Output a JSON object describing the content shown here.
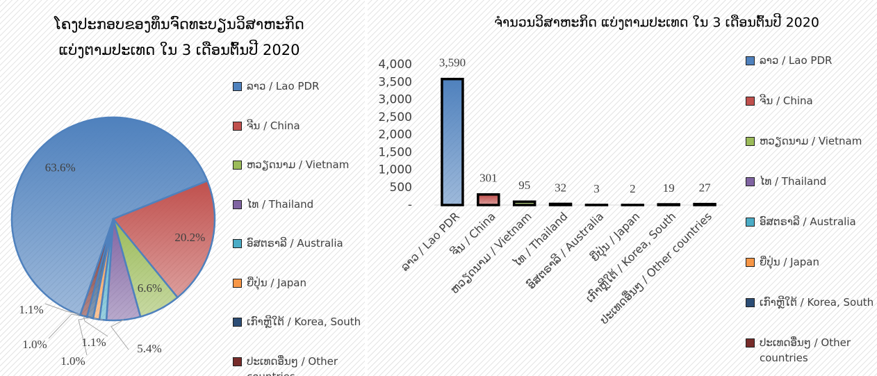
{
  "chart_data": [
    {
      "type": "pie",
      "title": [
        "ໂຄງປະກອບຂອງທຶນຈົດທະບຽນວິສາຫະກິດ",
        "ແບ່ງຕາມປະເທດ ໃນ 3 ເດືອນຕົ້ນປີ 2020"
      ],
      "categories": [
        "ລາວ / Lao PDR",
        "ຈີນ / China",
        "ຫວຽດນາມ / Vietnam",
        "ໄທ / Thailand",
        "ອົສຕຣາລີ / Australia",
        "ຍີ່ປຸ່ນ / Japan",
        "ເກົາຫຼີໃຕ້ / Korea, South",
        "ປະເທດອື່ນໆ / Other countries"
      ],
      "values": [
        63.6,
        20.2,
        6.6,
        5.4,
        1.1,
        1.0,
        1.0,
        1.1
      ],
      "value_labels": [
        "63.6%",
        "20.2%",
        "6.6%",
        "5.4%",
        "1.1%",
        "1.0%",
        "1.0%",
        "1.1%"
      ],
      "colors": [
        "#4f81bd",
        "#c0504d",
        "#9bbb59",
        "#8064a2",
        "#4bacc6",
        "#f79646",
        "#2c4d75",
        "#772c2a"
      ],
      "legend": "right"
    },
    {
      "type": "bar",
      "title": [
        "ຈຳນວນວິສາຫະກິດ ແບ່ງຕາມປະເທດ ໃນ 3 ເດືອນຕົ້ນປີ 2020"
      ],
      "categories": [
        "ລາວ / Lao PDR",
        "ຈີນ / China",
        "ຫວຽດນາມ / Vietnam",
        "ໄທ / Thailand",
        "ອົສຕຣາລີ / Australia",
        "ຍີ່ປຸ່ນ / Japan",
        "ເກົາຫຼີໃຕ້ / Korea, South",
        "ປະເທດອື່ນໆ / Other countries"
      ],
      "values": [
        3590,
        301,
        95,
        32,
        3,
        2,
        19,
        27
      ],
      "value_labels": [
        "3,590",
        "301",
        "95",
        "32",
        "3",
        "2",
        "19",
        "27"
      ],
      "colors": [
        "#4f81bd",
        "#c0504d",
        "#9bbb59",
        "#8064a2",
        "#4bacc6",
        "#f79646",
        "#2c4d75",
        "#772c2a"
      ],
      "ylim": [
        0,
        4000
      ],
      "yticks": [
        {
          "value": 0,
          "label": "-"
        },
        500,
        {
          "value": 1000,
          "label": "1,000"
        },
        {
          "value": 1500,
          "label": "1,500"
        },
        {
          "value": 2000,
          "label": "2,000"
        },
        {
          "value": 2500,
          "label": "2,500"
        },
        {
          "value": 3000,
          "label": "3,000"
        },
        {
          "value": 3500,
          "label": "3,500"
        },
        {
          "value": 4000,
          "label": "4,000"
        }
      ],
      "legend": "right"
    }
  ]
}
